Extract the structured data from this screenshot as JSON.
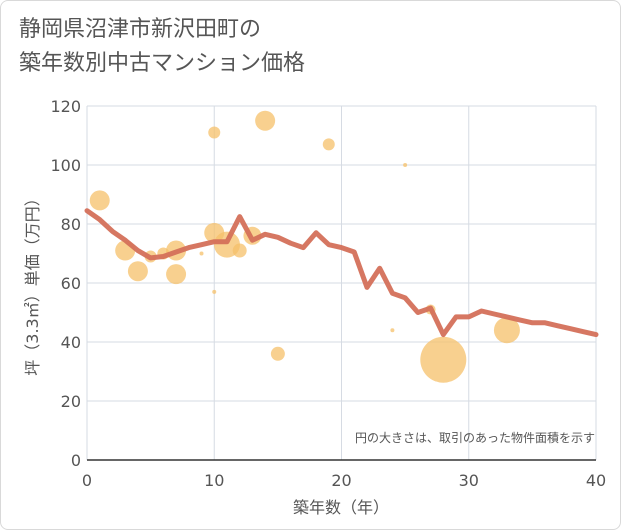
{
  "title_lines": [
    "静岡県沼津市新沢田町の",
    "築年数別中古マンション価格"
  ],
  "chart_data": {
    "type": "scatter",
    "xlabel": "築年数（年）",
    "ylabel": "坪（3.3㎡）単価（万円）",
    "xlim": [
      0,
      40
    ],
    "ylim": [
      0,
      120
    ],
    "xticks": [
      0,
      10,
      20,
      30,
      40
    ],
    "yticks": [
      0,
      20,
      40,
      60,
      80,
      100,
      120
    ],
    "grid": true,
    "note": "円の大きさは、取引のあった物件面積を示す",
    "bubble_color": "#f5c06a",
    "line_color": "#d4705a",
    "bubbles": [
      {
        "x": 1,
        "y": 88,
        "size": 10
      },
      {
        "x": 3,
        "y": 71,
        "size": 10
      },
      {
        "x": 4,
        "y": 64,
        "size": 10
      },
      {
        "x": 5,
        "y": 69,
        "size": 6
      },
      {
        "x": 6,
        "y": 70,
        "size": 6
      },
      {
        "x": 7,
        "y": 71,
        "size": 10
      },
      {
        "x": 7,
        "y": 63,
        "size": 10
      },
      {
        "x": 9,
        "y": 70,
        "size": 2
      },
      {
        "x": 10,
        "y": 111,
        "size": 6
      },
      {
        "x": 10,
        "y": 77,
        "size": 10
      },
      {
        "x": 10,
        "y": 57,
        "size": 2
      },
      {
        "x": 11,
        "y": 73,
        "size": 13
      },
      {
        "x": 12,
        "y": 71,
        "size": 7
      },
      {
        "x": 13,
        "y": 76,
        "size": 9
      },
      {
        "x": 14,
        "y": 115,
        "size": 10
      },
      {
        "x": 15,
        "y": 36,
        "size": 7
      },
      {
        "x": 19,
        "y": 107,
        "size": 6
      },
      {
        "x": 24,
        "y": 44,
        "size": 2
      },
      {
        "x": 25,
        "y": 100,
        "size": 2
      },
      {
        "x": 27,
        "y": 51,
        "size": 5
      },
      {
        "x": 28,
        "y": 34,
        "size": 23
      },
      {
        "x": 33,
        "y": 44,
        "size": 13
      }
    ],
    "trend_x": [
      0,
      1,
      2,
      3,
      4,
      5,
      6,
      7,
      8,
      9,
      10,
      11,
      12,
      13,
      14,
      15,
      16,
      17,
      18,
      19,
      20,
      21,
      22,
      23,
      24,
      25,
      26,
      27,
      28,
      29,
      30,
      31,
      32,
      33,
      34,
      35,
      36,
      37,
      38,
      39,
      40
    ],
    "trend_y": [
      84.5,
      81.5,
      77.5,
      74.5,
      71,
      68.5,
      69,
      70.5,
      72,
      73,
      74,
      74,
      82.5,
      74.5,
      76.5,
      75.5,
      73.5,
      72,
      77,
      73,
      72,
      70.5,
      58.5,
      65,
      56.5,
      55,
      50,
      51.5,
      42.5,
      48.5,
      48.5,
      50.5,
      49.5,
      48.5,
      47.5,
      46.5,
      46.5,
      45.5,
      44.5,
      43.5,
      42.5
    ]
  }
}
